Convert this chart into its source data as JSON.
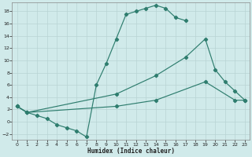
{
  "xlabel": "Humidex (Indice chaleur)",
  "bg_color": "#d0eaea",
  "line_color": "#2e7d6e",
  "grid_color": "#b8d4d4",
  "xlim": [
    -0.5,
    23.5
  ],
  "ylim": [
    -3.0,
    19.5
  ],
  "xticks": [
    0,
    1,
    2,
    3,
    4,
    5,
    6,
    7,
    8,
    9,
    10,
    11,
    12,
    13,
    14,
    15,
    16,
    17,
    18,
    19,
    20,
    21,
    22,
    23
  ],
  "yticks": [
    -2,
    0,
    2,
    4,
    6,
    8,
    10,
    12,
    14,
    16,
    18
  ],
  "curve1_x": [
    0,
    1,
    2,
    3,
    4,
    5,
    6,
    7,
    8,
    9,
    10,
    11,
    12,
    13,
    14,
    15,
    16,
    17
  ],
  "curve1_y": [
    2.5,
    1.5,
    1.0,
    0.5,
    -0.5,
    -1.0,
    -1.5,
    -2.5,
    6.0,
    9.5,
    13.5,
    17.5,
    18.0,
    18.5,
    19.0,
    18.5,
    17.0,
    16.5
  ],
  "curve2_x": [
    0,
    1,
    10,
    14,
    17,
    19,
    20,
    21,
    22,
    23
  ],
  "curve2_y": [
    2.5,
    1.5,
    4.5,
    7.5,
    10.5,
    13.5,
    8.5,
    6.5,
    5.0,
    3.5
  ],
  "curve3_x": [
    0,
    1,
    10,
    14,
    19,
    22,
    23
  ],
  "curve3_y": [
    2.5,
    1.5,
    2.5,
    3.5,
    6.5,
    3.5,
    3.5
  ]
}
